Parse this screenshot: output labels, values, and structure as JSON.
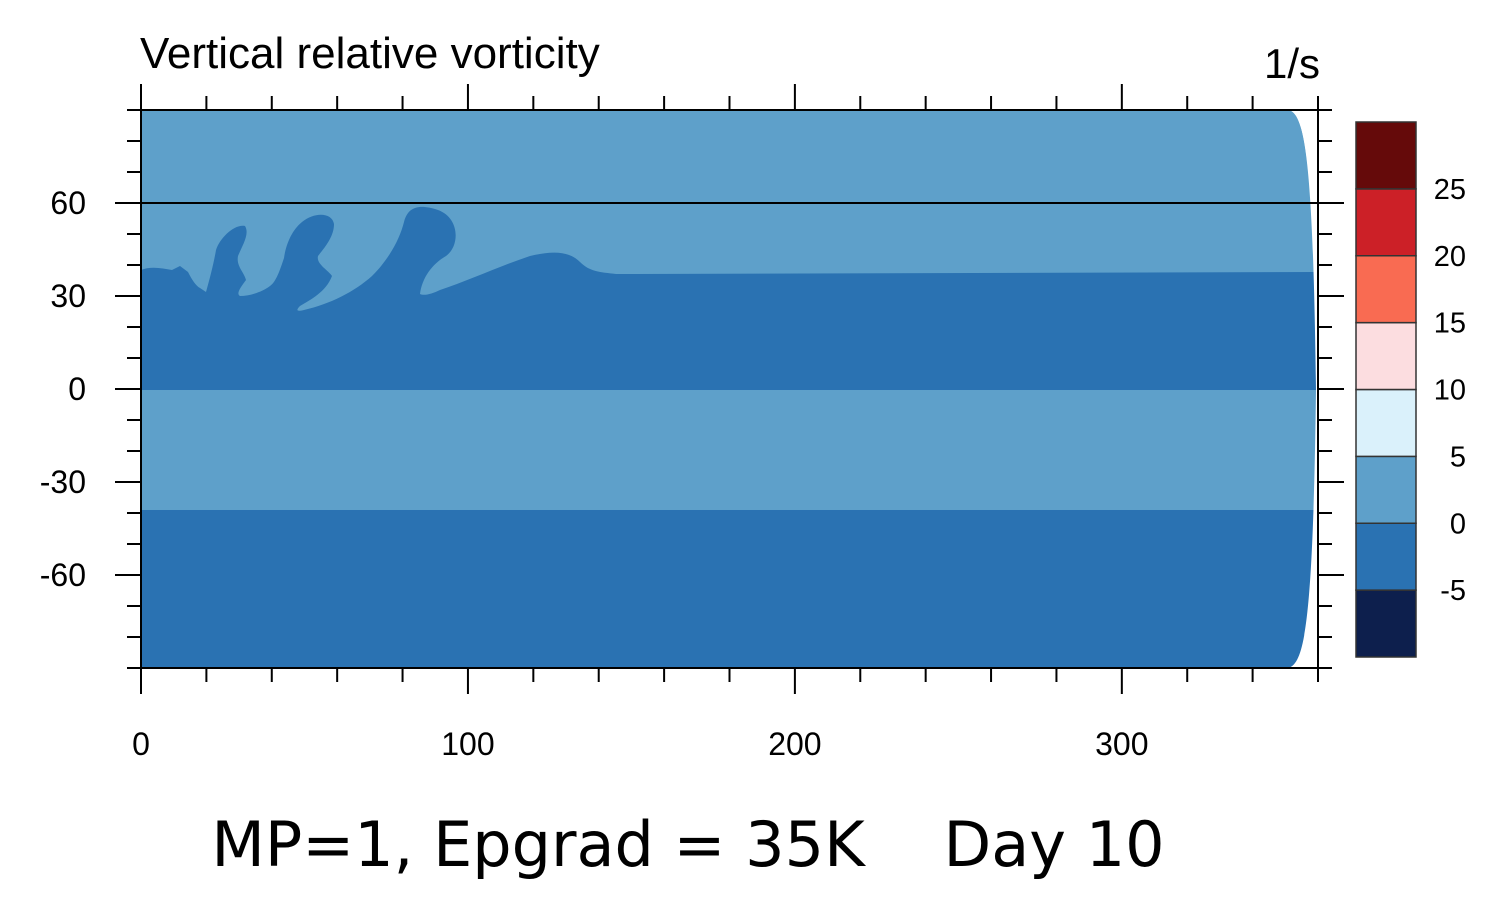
{
  "caption": "MP=1, Epgrad = 35K    Day 10",
  "chart_data": {
    "type": "heatmap",
    "title": "Vertical relative vorticity",
    "units": "1/s",
    "xlim": [
      0,
      360
    ],
    "ylim": [
      -90,
      90
    ],
    "x_major_ticks": [
      0,
      100,
      200,
      300
    ],
    "y_major_ticks": [
      60,
      30,
      0,
      -30,
      -60
    ],
    "reference_line_y": 60,
    "colorbar": {
      "levels": [
        -5,
        0,
        5,
        10,
        15,
        20,
        25
      ],
      "colors": [
        "#0d1f4d",
        "#2a72b2",
        "#5ea0ca",
        "#daf1fb",
        "#fcdde0",
        "#f96b52",
        "#cc2027",
        "#650a0a"
      ]
    },
    "regions": [
      {
        "name": "north-band",
        "value_range": [
          0,
          5
        ],
        "lat_range": [
          38,
          90
        ],
        "color": "#5ea0ca"
      },
      {
        "name": "north-tropics-band",
        "value_range": [
          -5,
          0
        ],
        "lat_range": [
          0,
          38
        ],
        "color": "#2a72b2"
      },
      {
        "name": "south-tropics-band",
        "value_range": [
          0,
          5
        ],
        "lat_range": [
          -38,
          0
        ],
        "color": "#5ea0ca"
      },
      {
        "name": "south-band",
        "value_range": [
          -5,
          0
        ],
        "lat_range": [
          -90,
          -38
        ],
        "color": "#2a72b2"
      }
    ],
    "eddies": [
      {
        "name": "eddy-1",
        "lon_range": [
          15,
          33
        ],
        "lat_range": [
          31,
          53
        ]
      },
      {
        "name": "eddy-2",
        "lon_range": [
          46,
          59
        ],
        "lat_range": [
          27,
          57
        ]
      },
      {
        "name": "eddy-3",
        "lon_range": [
          85,
          96
        ],
        "lat_range": [
          30,
          59
        ]
      },
      {
        "name": "wave-bump",
        "lon_range": [
          100,
          145
        ],
        "lat_range": [
          38,
          43
        ]
      }
    ]
  },
  "colors": {
    "light": "#5ea0ca",
    "dark": "#2a72b2"
  }
}
